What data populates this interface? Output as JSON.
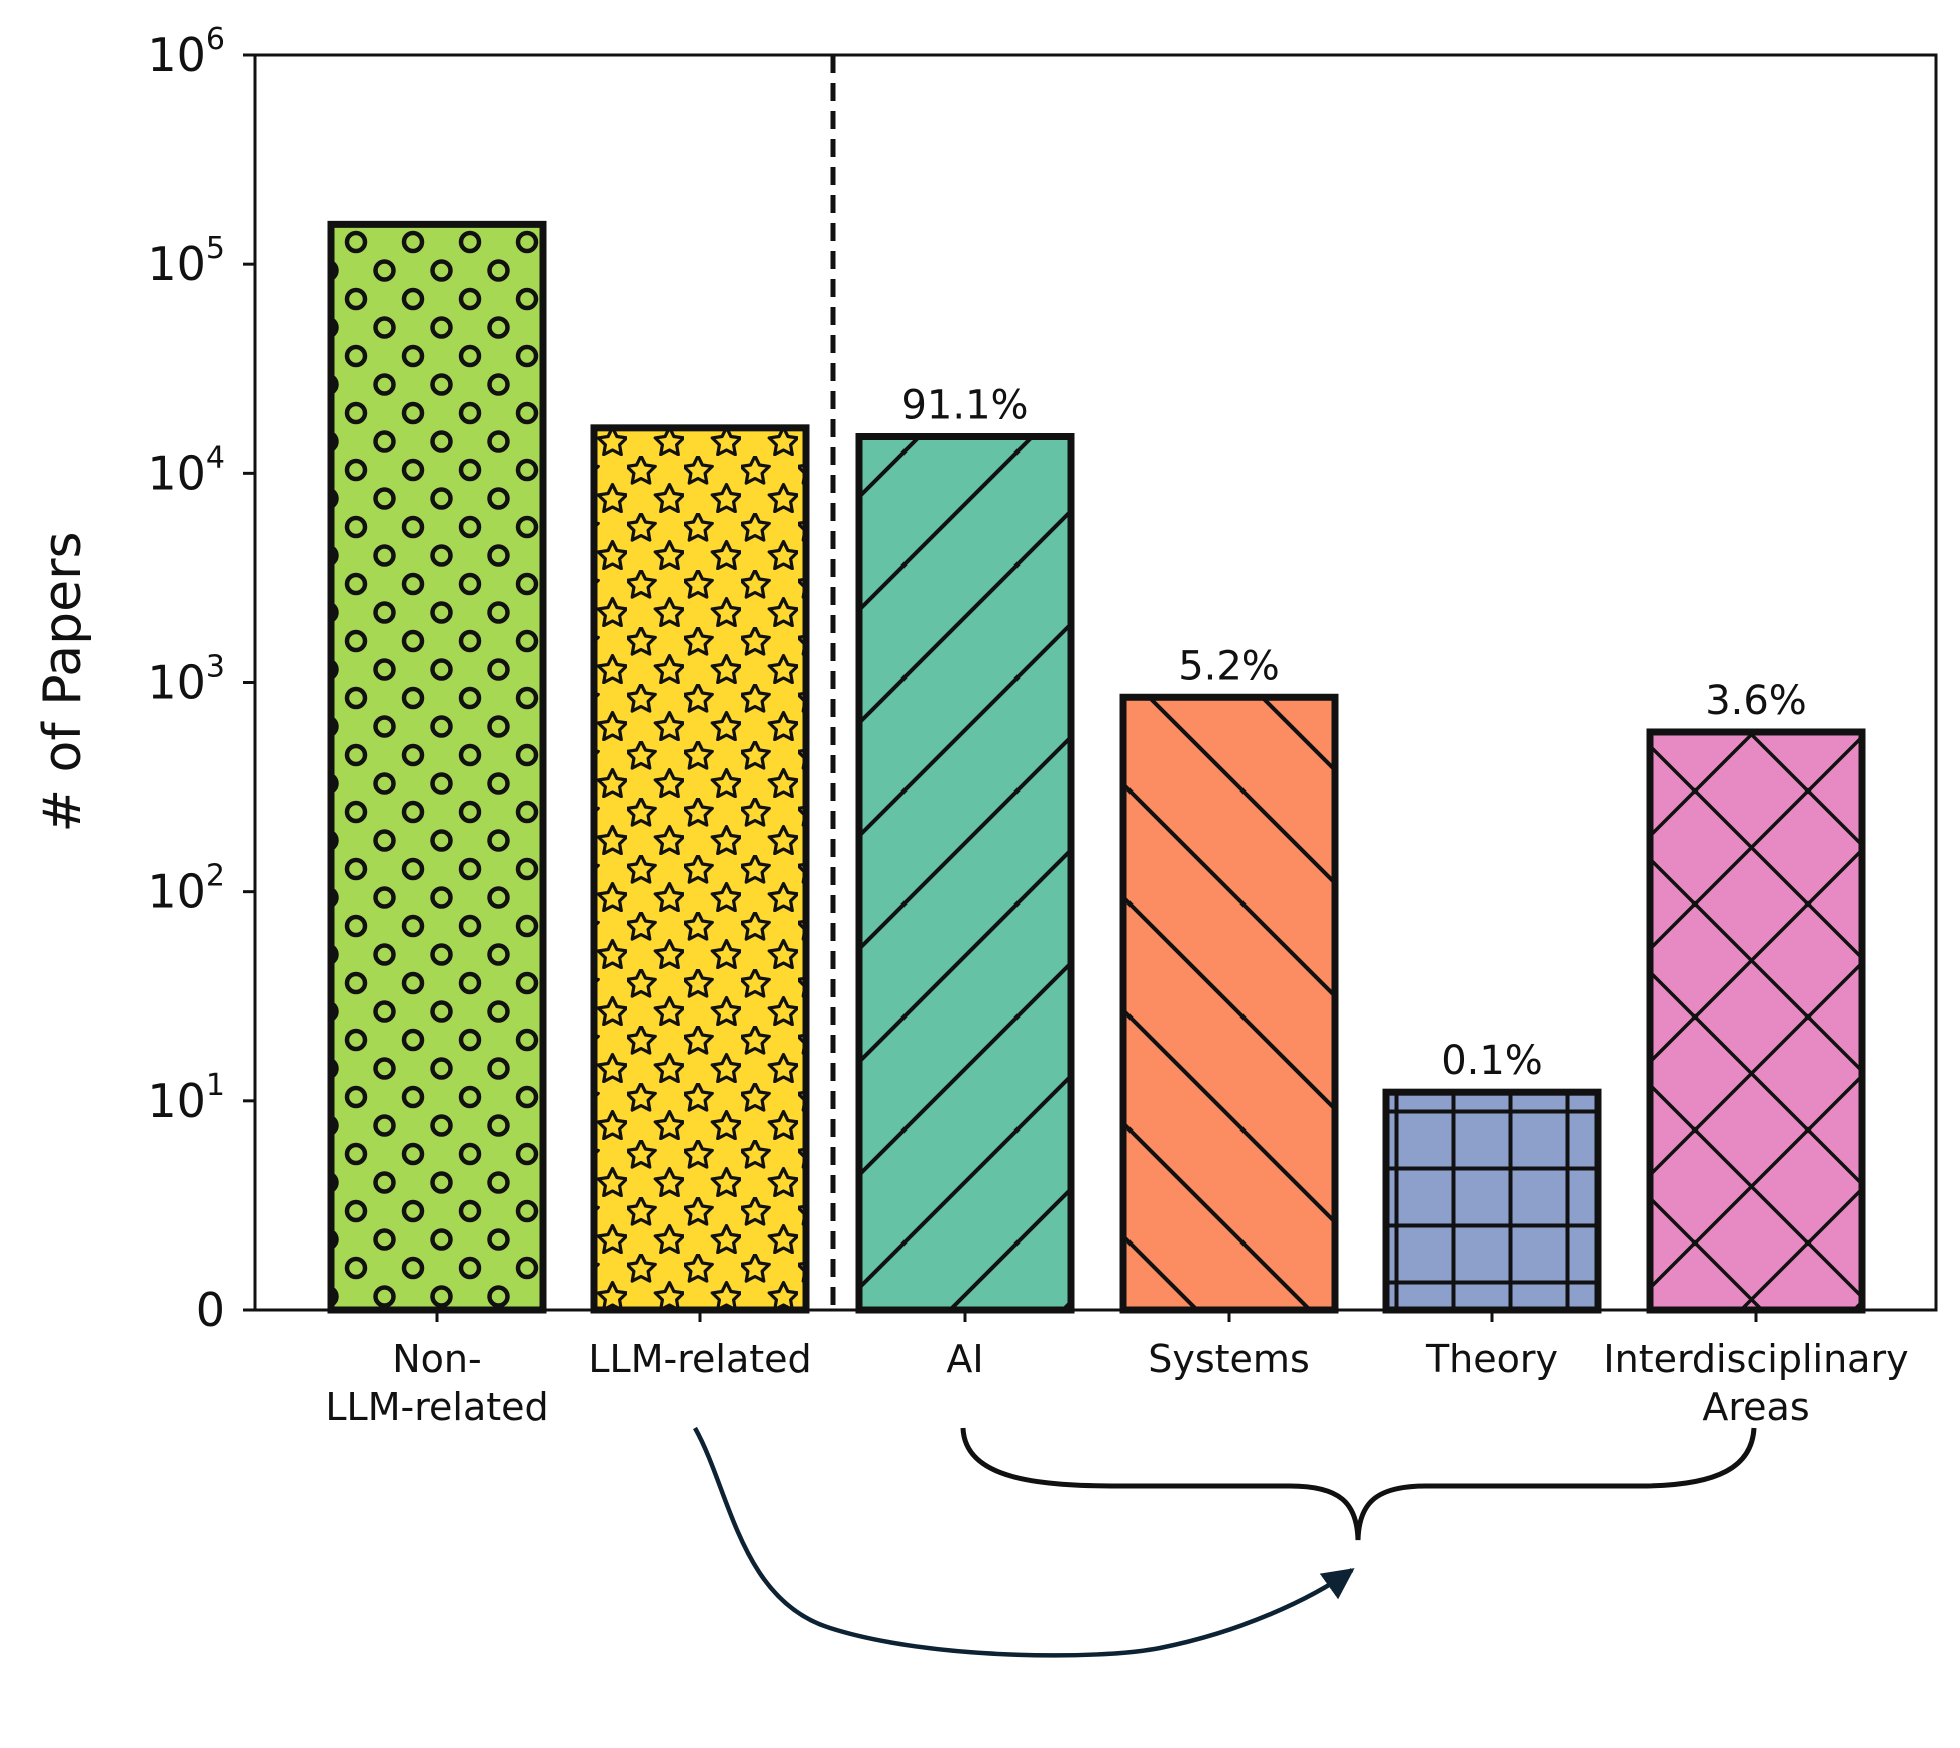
{
  "chart_data": {
    "type": "bar",
    "ylabel": "# of Papers",
    "yscale": "symlog",
    "ylim": [
      0,
      1000000
    ],
    "yticks": [
      {
        "value": 0,
        "base": "0",
        "exp": ""
      },
      {
        "value": 10,
        "base": "10",
        "exp": "1"
      },
      {
        "value": 100,
        "base": "10",
        "exp": "2"
      },
      {
        "value": 1000,
        "base": "10",
        "exp": "3"
      },
      {
        "value": 10000,
        "base": "10",
        "exp": "4"
      },
      {
        "value": 100000,
        "base": "10",
        "exp": "5"
      },
      {
        "value": 1000000,
        "base": "10",
        "exp": "6"
      }
    ],
    "categories": [
      "Non-\nLLM-related",
      "LLM-related",
      "AI",
      "Systems",
      "Theory",
      "Interdisciplinary\nAreas"
    ],
    "values": [
      155000,
      16500,
      15000,
      850,
      11,
      580
    ],
    "data_labels": [
      "",
      "",
      "91.1%",
      "5.2%",
      "0.1%",
      "3.6%"
    ],
    "colors": [
      "#a6d854",
      "#ffd92f",
      "#66c2a5",
      "#fc8d62",
      "#8da0cb",
      "#e78ac3"
    ],
    "hatches": [
      "circles",
      "stars",
      "diagonal-up",
      "diagonal-down",
      "grid",
      "crosshatch"
    ],
    "grid": false,
    "annotations": [
      "dashed divider between LLM-related and AI",
      "brace grouping AI through Interdisciplinary Areas",
      "arrow from LLM-related to the brace"
    ]
  }
}
